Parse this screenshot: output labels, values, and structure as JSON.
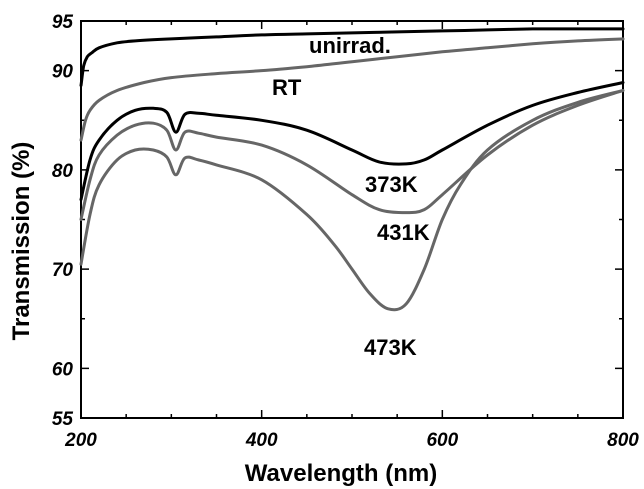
{
  "chart_data": {
    "type": "line",
    "title": "",
    "xlabel": "Wavelength (nm)",
    "ylabel": "Transmission (%)",
    "xlim": [
      200,
      800
    ],
    "ylim": [
      55,
      95
    ],
    "x_ticks": [
      200,
      400,
      600,
      800
    ],
    "y_ticks": [
      55,
      60,
      70,
      80,
      90,
      95
    ],
    "x_tick_labels": [
      "200",
      "400",
      "600",
      "800"
    ],
    "y_tick_labels": [
      "55",
      "60",
      "70",
      "80",
      "90",
      "95"
    ],
    "grid": false,
    "legend": "none",
    "series": [
      {
        "name": "unirrad.",
        "color": "#000000",
        "x": [
          200,
          203,
          207,
          212,
          220,
          240,
          260,
          300,
          350,
          400,
          450,
          500,
          550,
          600,
          650,
          700,
          750,
          800
        ],
        "y": [
          88.5,
          90.5,
          91.4,
          91.8,
          92.3,
          92.8,
          93.0,
          93.2,
          93.4,
          93.6,
          93.7,
          93.8,
          93.9,
          94.0,
          94.1,
          94.2,
          94.2,
          94.2
        ]
      },
      {
        "name": "RT",
        "color": "#666666",
        "x": [
          200,
          205,
          210,
          220,
          240,
          270,
          300,
          350,
          400,
          450,
          500,
          550,
          600,
          650,
          700,
          750,
          800
        ],
        "y": [
          83.0,
          85.0,
          86.0,
          87.0,
          88.0,
          88.8,
          89.3,
          89.7,
          90.0,
          90.4,
          90.9,
          91.4,
          91.9,
          92.3,
          92.7,
          93.0,
          93.2
        ]
      },
      {
        "name": "373K",
        "color": "#000000",
        "x": [
          200,
          210,
          220,
          240,
          260,
          280,
          295,
          305,
          315,
          330,
          350,
          400,
          450,
          500,
          530,
          560,
          580,
          600,
          650,
          700,
          750,
          800
        ],
        "y": [
          77.0,
          81.0,
          83.0,
          85.0,
          86.0,
          86.2,
          85.8,
          83.8,
          85.6,
          85.7,
          85.5,
          85.0,
          84.0,
          82.0,
          80.8,
          80.6,
          81.0,
          82.0,
          84.5,
          86.5,
          87.8,
          88.8
        ]
      },
      {
        "name": "431K",
        "color": "#666666",
        "x": [
          200,
          210,
          220,
          240,
          260,
          280,
          295,
          305,
          315,
          330,
          350,
          400,
          450,
          500,
          530,
          560,
          580,
          600,
          650,
          700,
          750,
          800
        ],
        "y": [
          75.0,
          79.0,
          81.5,
          83.5,
          84.5,
          84.7,
          84.0,
          82.0,
          83.8,
          83.7,
          83.3,
          82.5,
          80.5,
          77.5,
          76.0,
          75.7,
          76.0,
          77.5,
          81.5,
          84.5,
          86.5,
          88.0
        ]
      },
      {
        "name": "473K",
        "color": "#666666",
        "x": [
          200,
          210,
          220,
          240,
          260,
          280,
          295,
          305,
          315,
          330,
          350,
          400,
          450,
          480,
          500,
          520,
          540,
          560,
          580,
          600,
          620,
          650,
          700,
          750,
          800
        ],
        "y": [
          70.5,
          75.5,
          78.5,
          81.0,
          82.0,
          82.0,
          81.3,
          79.5,
          81.2,
          81.0,
          80.5,
          79.0,
          75.5,
          72.5,
          70.0,
          67.5,
          66.0,
          66.5,
          70.0,
          75.0,
          78.5,
          82.0,
          85.0,
          86.8,
          88.0
        ]
      }
    ],
    "annotations": [
      {
        "text": "unirrad.",
        "series": "unirrad."
      },
      {
        "text": "RT",
        "series": "RT"
      },
      {
        "text": "373K",
        "series": "373K"
      },
      {
        "text": "431K",
        "series": "431K"
      },
      {
        "text": "473K",
        "series": "473K"
      }
    ]
  }
}
